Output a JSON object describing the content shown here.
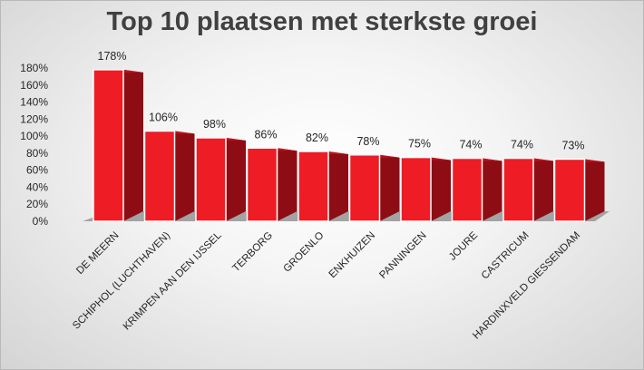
{
  "chart_data": {
    "type": "bar",
    "title": "Top 10 plaatsen met sterkste groei",
    "categories": [
      "DE MEERN",
      "SCHIPHOL (LUCHTHAVEN)",
      "KRIMPEN AAN DEN IJSSEL",
      "TERBORG",
      "GROENLO",
      "ENKHUIZEN",
      "PANNINGEN",
      "JOURE",
      "CASTRICUM",
      "HARDINXVELD GIESSENDAM"
    ],
    "values": [
      178,
      106,
      98,
      86,
      82,
      78,
      75,
      74,
      74,
      73
    ],
    "data_labels": [
      "178%",
      "106%",
      "98%",
      "86%",
      "82%",
      "78%",
      "75%",
      "74%",
      "74%",
      "73%"
    ],
    "ylim": [
      0,
      180
    ],
    "yticks": [
      "0%",
      "20%",
      "40%",
      "60%",
      "80%",
      "100%",
      "120%",
      "140%",
      "160%",
      "180%"
    ],
    "xlabel": "",
    "ylabel": "",
    "grid": false,
    "legend": "none",
    "colors": {
      "bar_front": "#ee1c25",
      "bar_side": "#8e0d14",
      "floor": "#a3a3a3",
      "title": "#404040"
    }
  }
}
